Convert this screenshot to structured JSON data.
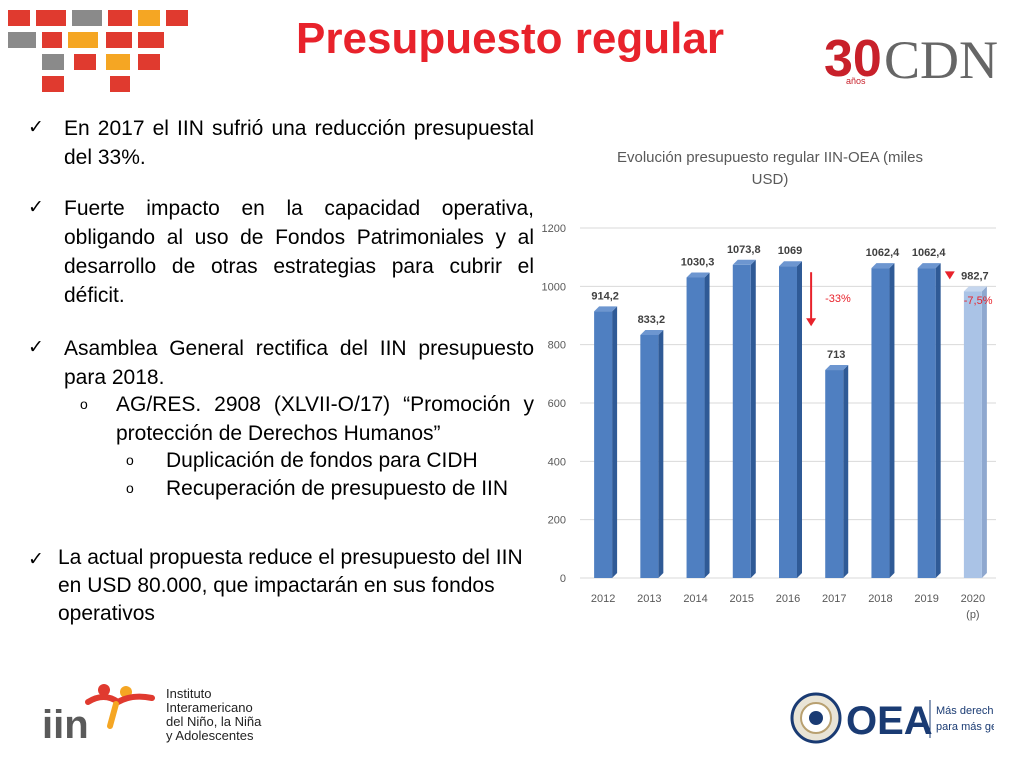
{
  "slide": {
    "title": "Presupuesto regular"
  },
  "bullets": [
    {
      "text": "En 2017 el IIN sufrió una reducción presupuestal del 33%."
    },
    {
      "text": "Fuerte impacto en la capacidad operativa, obligando al uso de Fondos Patrimoniales y al desarrollo de otras estrategias para cubrir el déficit."
    },
    {
      "text": "Asamblea General rectifica del IIN presupuesto para 2018."
    },
    {
      "text": "AG/RES. 2908 (XLVII-O/17) “Promoción y protección de Derechos Humanos”"
    },
    {
      "text": "Duplicación de fondos para CIDH"
    },
    {
      "text": "Recuperación de presupuesto de IIN"
    },
    {
      "text": "La actual propuesta reduce el presupuesto del IIN en USD 80.000, que impactarán en sus fondos operativos"
    }
  ],
  "chart_data": {
    "type": "bar",
    "title": "Evolución presupuesto regular IIN-OEA (miles USD)",
    "categories": [
      "2012",
      "2013",
      "2014",
      "2015",
      "2016",
      "2017",
      "2018",
      "2019",
      "2020"
    ],
    "category_sublabels": [
      "",
      "",
      "",
      "",
      "",
      "",
      "",
      "",
      "(p)"
    ],
    "values": [
      914.2,
      833.2,
      1030.3,
      1073.8,
      1069,
      713,
      1062.4,
      1062.4,
      982.7
    ],
    "value_labels": [
      "914,2",
      "833,2",
      "1030,3",
      "1073,8",
      "1069",
      "713",
      "1062,4",
      "1062,4",
      "982,7"
    ],
    "ylim": [
      0,
      1200
    ],
    "yticks": [
      0,
      200,
      400,
      600,
      800,
      1000,
      1200
    ],
    "grid": true,
    "bar_color": "#4f7fc1",
    "projected_bar_color": "#aac3e6",
    "annotations": [
      {
        "text": "-33%",
        "category": "2017",
        "color": "#e8222b"
      },
      {
        "text": "-7,5%",
        "category": "2020",
        "color": "#e8222b"
      }
    ]
  },
  "footer": {
    "iin_mark": "iin",
    "iin_name": [
      "Instituto",
      "Interamericano",
      "del Niño, la Niña",
      "y Adolescentes"
    ],
    "oea_mark": "OEA",
    "oea_tagline": [
      "Más derechos",
      "para más gente"
    ]
  },
  "brand": {
    "cdn_number": "30",
    "cdn_sub": "años",
    "cdn_text": "CDN"
  },
  "colors": {
    "title_red": "#e8222b",
    "mosaic_red": "#e03a2f",
    "mosaic_orange": "#f5a623",
    "mosaic_gray": "#8a8a8a",
    "cdn_red": "#c8202a",
    "cdn_gray": "#666666",
    "oea_blue": "#1a3b73"
  }
}
